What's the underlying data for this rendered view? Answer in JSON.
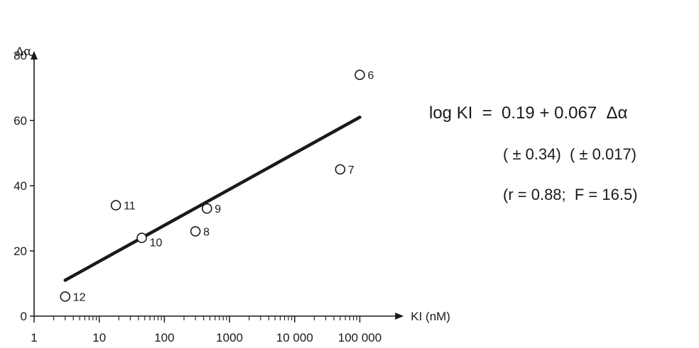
{
  "chart_data": {
    "type": "scatter",
    "title": "",
    "xlabel": "KI  (nM)",
    "ylabel": "Δα",
    "x_scale": "log",
    "xlim": [
      1,
      300000
    ],
    "ylim": [
      0,
      90
    ],
    "x_ticks": [
      1,
      10,
      100,
      1000,
      10000,
      100000
    ],
    "x_tick_labels": [
      "1",
      "10",
      "100",
      "1000",
      "10 000",
      "100 000"
    ],
    "y_ticks": [
      0,
      20,
      40,
      60,
      80
    ],
    "y_tick_labels": [
      "0",
      "20",
      "40",
      "60",
      "80"
    ],
    "grid": false,
    "points": [
      {
        "label": "6",
        "x": 100000,
        "y": 74
      },
      {
        "label": "7",
        "x": 50000,
        "y": 45
      },
      {
        "label": "8",
        "x": 300,
        "y": 26
      },
      {
        "label": "9",
        "x": 450,
        "y": 33
      },
      {
        "label": "10",
        "x": 45,
        "y": 24
      },
      {
        "label": "11",
        "x": 18,
        "y": 34
      },
      {
        "label": "12",
        "x": 3,
        "y": 6
      }
    ],
    "fit_line": {
      "x": [
        3,
        100000
      ],
      "y": [
        11,
        61
      ]
    },
    "equation": {
      "main": "log KI  =  0.19 + 0.067  Δα",
      "errors": "( ± 0.34)  ( ± 0.017)",
      "stats": "(r = 0.88;  F = 16.5)"
    }
  }
}
